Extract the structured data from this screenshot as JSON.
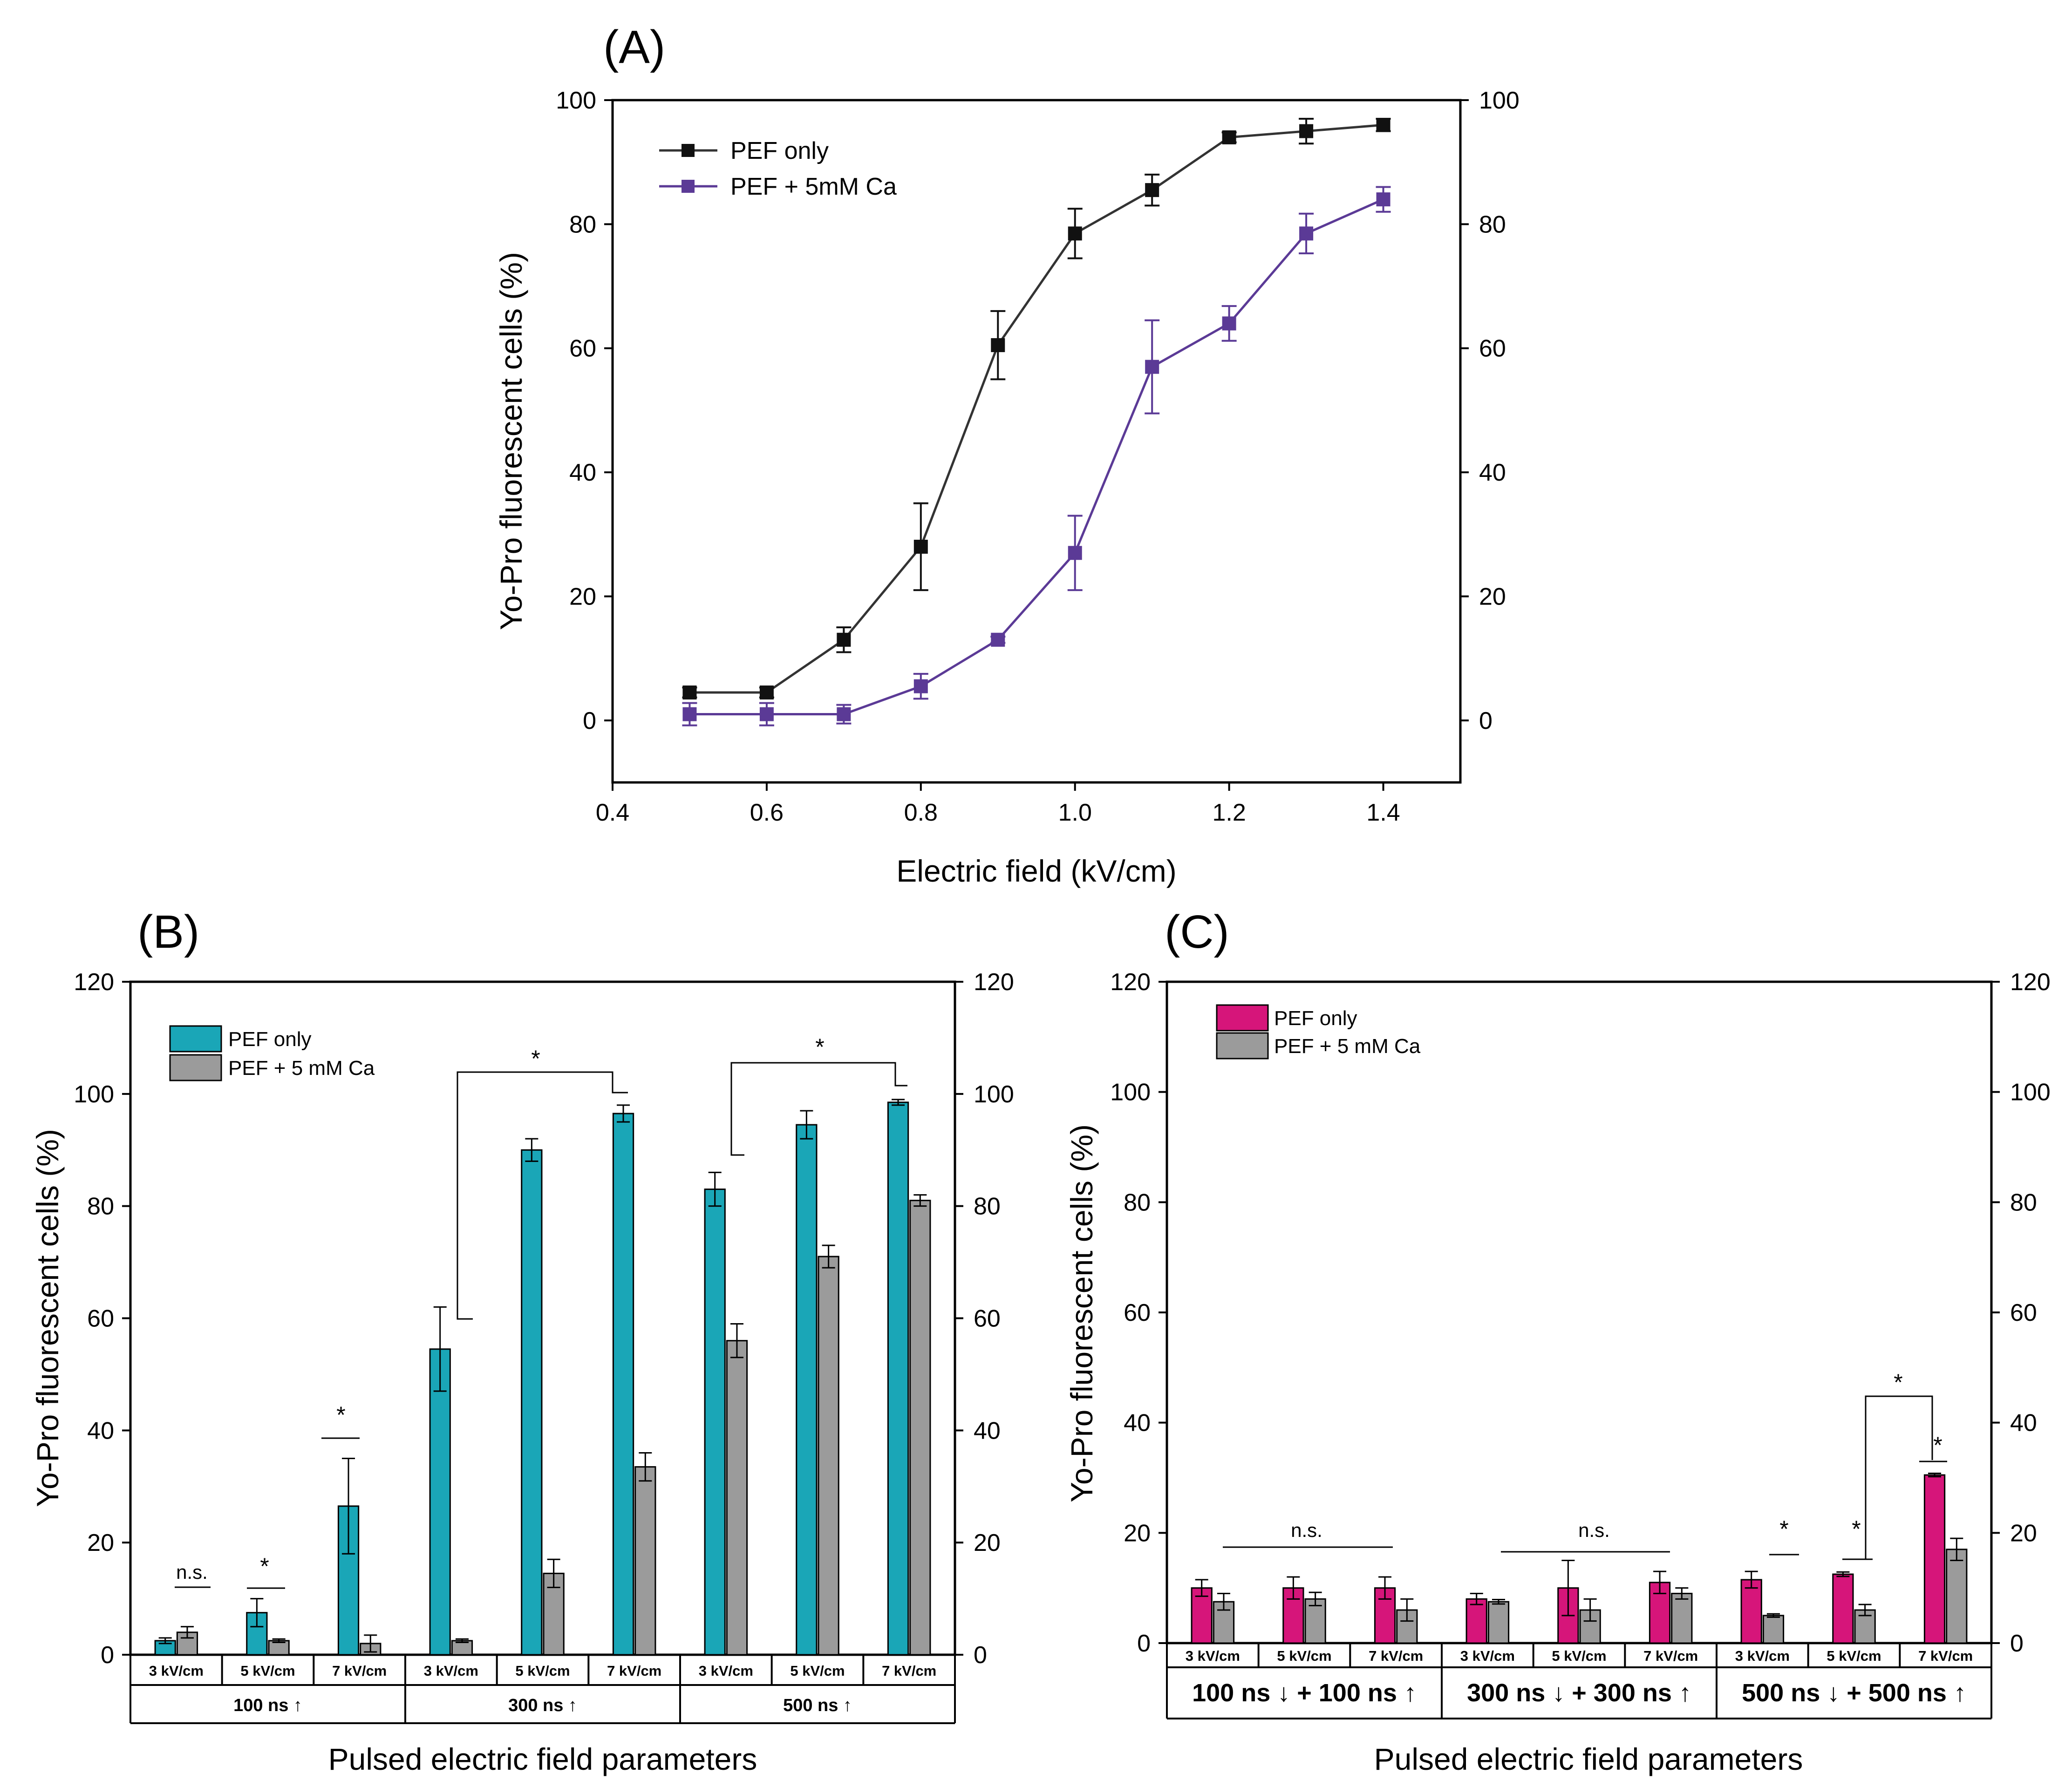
{
  "colors": {
    "pef_only_A": "#111111",
    "pef_ca_A": "#5b3a96",
    "pef_only_B": "#1aa6b7",
    "pef_ca": "#9b9b9b",
    "pef_only_C": "#d6157a"
  },
  "chart_data": [
    {
      "id": "A",
      "type": "line",
      "panel_label": "(A)",
      "xlabel": "Electric field (kV/cm)",
      "ylabel": "Yo-Pro fluorescent cells (%)",
      "xlim": [
        0.4,
        1.5
      ],
      "ylim": [
        -10,
        100
      ],
      "xticks": [
        0.4,
        0.6,
        0.8,
        1.0,
        1.2,
        1.4
      ],
      "xtick_labels": [
        "0.4",
        "0.6",
        "0.8",
        "1.0",
        "1.2",
        "1.4"
      ],
      "yticks": [
        0,
        20,
        40,
        60,
        80,
        100
      ],
      "ytick_labels": [
        "0",
        "20",
        "40",
        "60",
        "80",
        "100"
      ],
      "legend_position": "top-left",
      "x": [
        0.5,
        0.6,
        0.7,
        0.8,
        0.9,
        1.0,
        1.1,
        1.2,
        1.3,
        1.4
      ],
      "series": [
        {
          "name": "PEF only",
          "color": "#111111",
          "values": [
            4.5,
            4.5,
            13,
            28,
            60.5,
            78.5,
            85.5,
            94,
            95,
            96
          ],
          "errors": [
            0.8,
            0.8,
            2,
            7,
            5.5,
            4,
            2.5,
            0.8,
            2,
            1
          ]
        },
        {
          "name": "PEF + 5mM Ca",
          "color": "#5b3a96",
          "values": [
            1,
            1,
            1,
            5.5,
            13,
            27,
            57,
            64,
            78.5,
            84
          ],
          "errors": [
            1.8,
            1.8,
            1.5,
            2,
            0.5,
            6,
            7.5,
            2.8,
            3.2,
            2
          ]
        }
      ]
    },
    {
      "id": "B",
      "type": "bar",
      "panel_label": "(B)",
      "xlabel": "Pulsed electric field parameters",
      "ylabel": "Yo-Pro fluorescent cells (%)",
      "ylim": [
        0,
        120
      ],
      "yticks": [
        0,
        20,
        40,
        60,
        80,
        100,
        120
      ],
      "ytick_labels": [
        "0",
        "20",
        "40",
        "60",
        "80",
        "100",
        "120"
      ],
      "legend_position": "top-left",
      "categories": [
        "3 kV/cm",
        "5 kV/cm",
        "7 kV/cm",
        "3 kV/cm",
        "5 kV/cm",
        "7 kV/cm",
        "3 kV/cm",
        "5 kV/cm",
        "7 kV/cm"
      ],
      "groups": [
        "100 ns ↑",
        "300 ns ↑",
        "500 ns ↑"
      ],
      "series": [
        {
          "name": "PEF only",
          "color": "#1aa6b7",
          "values": [
            2.5,
            7.5,
            26.5,
            54.5,
            90,
            96.5,
            83,
            94.5,
            98.5
          ],
          "errors": [
            0.5,
            2.5,
            8.5,
            7.5,
            2,
            1.5,
            3,
            2.5,
            0.5
          ]
        },
        {
          "name": "PEF + 5 mM Ca",
          "color": "#9b9b9b",
          "values": [
            4,
            2.5,
            2,
            2.5,
            14.5,
            33.5,
            56,
            71,
            81
          ],
          "errors": [
            1,
            0.3,
            1.5,
            0.3,
            2.5,
            2.5,
            3,
            2,
            1
          ]
        }
      ],
      "annotations": [
        "n.s.",
        "*",
        "*",
        "*",
        "*"
      ]
    },
    {
      "id": "C",
      "type": "bar",
      "panel_label": "(C)",
      "xlabel": "Pulsed electric field parameters",
      "ylabel": "Yo-Pro fluorescent cells (%)",
      "ylim": [
        0,
        120
      ],
      "yticks": [
        0,
        20,
        40,
        60,
        80,
        100,
        120
      ],
      "ytick_labels": [
        "0",
        "20",
        "40",
        "60",
        "80",
        "100",
        "120"
      ],
      "legend_position": "top-left",
      "categories": [
        "3 kV/cm",
        "5 kV/cm",
        "7 kV/cm",
        "3 kV/cm",
        "5 kV/cm",
        "7 kV/cm",
        "3 kV/cm",
        "5 kV/cm",
        "7 kV/cm"
      ],
      "groups": [
        "100 ns ↓ + 100 ns ↑",
        "300 ns ↓ + 300 ns ↑",
        "500 ns ↓ + 500 ns ↑"
      ],
      "series": [
        {
          "name": "PEF only",
          "color": "#d6157a",
          "values": [
            10,
            10,
            10,
            8,
            10,
            11,
            11.5,
            12.5,
            30.5
          ],
          "errors": [
            1.5,
            2,
            2,
            1,
            5,
            2,
            1.5,
            0.4,
            0.3
          ]
        },
        {
          "name": "PEF + 5 mM Ca",
          "color": "#9b9b9b",
          "values": [
            7.5,
            8,
            6,
            7.5,
            6,
            9,
            5,
            6,
            17
          ],
          "errors": [
            1.5,
            1.2,
            2,
            0.4,
            2,
            1,
            0.3,
            1,
            2
          ]
        }
      ],
      "annotations": [
        "n.s.",
        "n.s.",
        "*",
        "*",
        "*",
        "*"
      ]
    }
  ]
}
